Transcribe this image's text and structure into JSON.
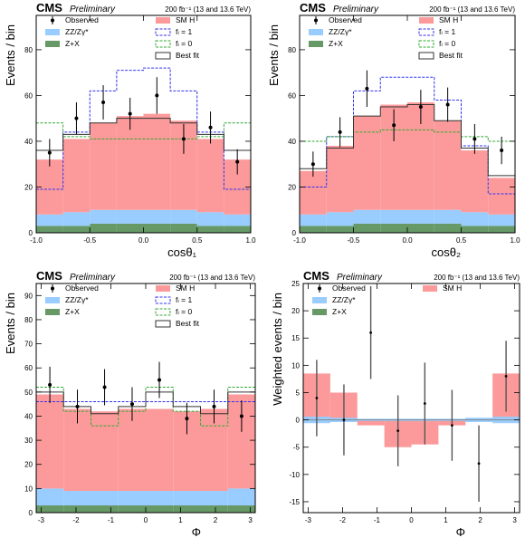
{
  "header": {
    "cms": "CMS",
    "preliminary": "Preliminary",
    "lumi": "200 fb⁻¹ (13 and 13.6 TeV)"
  },
  "legend_labels": {
    "observed": "Observed",
    "smh": "SM H",
    "zz": "ZZ/Zγ*",
    "fl1": "fₗ = 1",
    "zx": "Z+X",
    "fl0": "fₗ = 0",
    "bestfit": "Best fit"
  },
  "colors": {
    "smh": "#fc9a9b",
    "zz": "#99ccff",
    "zx": "#669966",
    "fl1": "#3333ee",
    "fl0": "#33aa33",
    "bestfit": "#333333",
    "observed": "#000000"
  },
  "chart_data": [
    {
      "type": "bar",
      "title": "",
      "xlabel": "cosθ₁",
      "ylabel": "Events / bin",
      "xlim": [
        -1.0,
        1.0
      ],
      "ylim": [
        0,
        95
      ],
      "xticks": [
        -1.0,
        -0.5,
        0.0,
        0.5,
        1.0
      ],
      "xtick_labels": [
        "-1.0",
        "-0.5",
        "0.0",
        "0.5",
        "1.0"
      ],
      "yticks": [
        0,
        20,
        40,
        60,
        80
      ],
      "bin_edges": [
        -1.0,
        -0.75,
        -0.5,
        -0.25,
        0.0,
        0.25,
        0.5,
        0.75,
        1.0
      ],
      "stack": [
        {
          "name": "Z+X",
          "values": [
            3,
            3,
            4,
            4,
            4,
            4,
            3,
            3
          ]
        },
        {
          "name": "ZZ/Zγ*",
          "values": [
            5,
            6,
            6,
            6,
            6,
            6,
            6,
            5
          ]
        },
        {
          "name": "SM H",
          "values": [
            24,
            32,
            38,
            41,
            42,
            39,
            32,
            24
          ]
        }
      ],
      "lines": [
        {
          "name": "fₗ = 1",
          "values": [
            19,
            44,
            62,
            71,
            72,
            62,
            44,
            19
          ]
        },
        {
          "name": "fₗ = 0",
          "values": [
            48,
            42,
            41,
            41,
            41,
            41,
            42,
            48
          ]
        },
        {
          "name": "Best fit",
          "values": [
            36,
            43,
            48,
            50,
            50,
            48,
            43,
            36
          ]
        }
      ],
      "observed": {
        "x": [
          -0.875,
          -0.625,
          -0.375,
          -0.125,
          0.125,
          0.375,
          0.625,
          0.875
        ],
        "y": [
          35,
          50,
          57,
          52,
          60,
          41,
          46,
          31
        ],
        "err": [
          6,
          7,
          7.5,
          7,
          8,
          6.5,
          7,
          5.5
        ]
      },
      "legend": "top-right"
    },
    {
      "type": "bar",
      "title": "",
      "xlabel": "cosθ₂",
      "ylabel": "Events / bin",
      "xlim": [
        -1.0,
        1.0
      ],
      "ylim": [
        0,
        95
      ],
      "xticks": [
        -1.0,
        -0.5,
        0.0,
        0.5,
        1.0
      ],
      "xtick_labels": [
        "-1.0",
        "-0.5",
        "0.0",
        "0.5",
        "1.0"
      ],
      "yticks": [
        0,
        20,
        40,
        60,
        80
      ],
      "bin_edges": [
        -1.0,
        -0.75,
        -0.5,
        -0.25,
        0.0,
        0.25,
        0.5,
        0.75,
        1.0
      ],
      "stack": [
        {
          "name": "Z+X",
          "values": [
            3,
            3,
            4,
            4,
            4,
            4,
            3,
            3
          ]
        },
        {
          "name": "ZZ/Zγ*",
          "values": [
            5,
            6,
            6,
            6,
            6,
            6,
            6,
            5
          ]
        },
        {
          "name": "SM H",
          "values": [
            19,
            29,
            41,
            46,
            47,
            39,
            27,
            16
          ]
        }
      ],
      "lines": [
        {
          "name": "fₗ = 1",
          "values": [
            20,
            42,
            62,
            68,
            68,
            58,
            38,
            17
          ]
        },
        {
          "name": "fₗ = 0",
          "values": [
            40,
            42,
            44,
            45,
            45,
            44,
            42,
            40
          ]
        },
        {
          "name": "Best fit",
          "values": [
            28,
            37,
            51,
            55,
            56,
            49,
            37,
            25
          ]
        }
      ],
      "observed": {
        "x": [
          -0.875,
          -0.625,
          -0.375,
          -0.125,
          0.125,
          0.375,
          0.625,
          0.875
        ],
        "y": [
          30,
          44,
          63,
          47,
          55,
          56,
          41,
          36
        ],
        "err": [
          5.5,
          6.5,
          8,
          7,
          7.5,
          7.5,
          6.5,
          6
        ]
      },
      "legend": "top-right"
    },
    {
      "type": "bar",
      "title": "",
      "xlabel": "Φ",
      "ylabel": "Events / bin",
      "xlim": [
        -3.14159,
        3.14159
      ],
      "ylim": [
        0,
        95
      ],
      "xticks": [
        -3,
        -2,
        -1,
        0,
        1,
        2,
        3
      ],
      "xtick_labels": [
        "-3",
        "-2",
        "-1",
        "0",
        "1",
        "2",
        "3"
      ],
      "yticks": [
        0,
        10,
        20,
        30,
        40,
        50,
        60,
        70,
        80,
        90
      ],
      "bin_edges": [
        -3.14159,
        -2.35619,
        -1.5708,
        -0.7854,
        0.0,
        0.7854,
        1.5708,
        2.35619,
        3.14159
      ],
      "stack": [
        {
          "name": "Z+X",
          "values": [
            3,
            3,
            3,
            3,
            3,
            3,
            3,
            3
          ]
        },
        {
          "name": "ZZ/Zγ*",
          "values": [
            7,
            6,
            6,
            6,
            6,
            6,
            6,
            7
          ]
        },
        {
          "name": "SM H",
          "values": [
            39,
            34,
            33,
            34,
            34,
            33,
            34,
            39
          ]
        }
      ],
      "lines": [
        {
          "name": "fₗ = 1",
          "values": [
            46,
            46,
            46,
            46,
            46,
            46,
            46,
            46
          ]
        },
        {
          "name": "fₗ = 0",
          "values": [
            52,
            42,
            36,
            42,
            52,
            42,
            36,
            52
          ]
        },
        {
          "name": "Best fit",
          "values": [
            50,
            44,
            41,
            44,
            50,
            44,
            41,
            50
          ]
        }
      ],
      "observed": {
        "x": [
          -2.75,
          -1.96,
          -1.18,
          -0.39,
          0.39,
          1.18,
          1.96,
          2.75
        ],
        "y": [
          53,
          44,
          52,
          45,
          55,
          39,
          44,
          40
        ],
        "err": [
          7.5,
          7,
          7.5,
          7,
          7.5,
          6.5,
          7,
          6.5
        ]
      },
      "legend": "top-right"
    },
    {
      "type": "bar",
      "title": "",
      "xlabel": "Φ",
      "ylabel": "Weighted events / bin",
      "xlim": [
        -3.14159,
        3.14159
      ],
      "ylim": [
        -17,
        25
      ],
      "xticks": [
        -3,
        -2,
        -1,
        0,
        1,
        2,
        3
      ],
      "xtick_labels": [
        "-3",
        "-2",
        "-1",
        "0",
        "1",
        "2",
        "3"
      ],
      "yticks": [
        -15,
        -10,
        -5,
        0,
        5,
        10,
        15,
        20,
        25
      ],
      "bin_edges": [
        -3.14159,
        -2.35619,
        -1.5708,
        -0.7854,
        0.0,
        0.7854,
        1.5708,
        2.35619,
        3.14159
      ],
      "stack": [
        {
          "name": "SM H",
          "values": [
            8.5,
            5,
            -1,
            -5,
            -4.5,
            -1,
            0,
            8.5
          ]
        }
      ],
      "bands": [
        {
          "name": "ZZ/Zγ*",
          "values": [
            1.2,
            0.8,
            0.4,
            0.4,
            0.4,
            0.4,
            0.8,
            1.2
          ]
        },
        {
          "name": "Z+X",
          "values": [
            0.5,
            0.4,
            0.3,
            0.3,
            0.3,
            0.3,
            0.4,
            0.5
          ]
        }
      ],
      "observed": {
        "x": [
          -2.75,
          -1.96,
          -1.18,
          -0.39,
          0.39,
          1.18,
          1.96,
          2.75
        ],
        "y": [
          4,
          0,
          16,
          -2,
          3,
          -1,
          -8,
          8
        ],
        "err": [
          7,
          6.5,
          8.5,
          6.5,
          7.5,
          6.5,
          7,
          6.5
        ]
      },
      "legend": "top"
    }
  ]
}
